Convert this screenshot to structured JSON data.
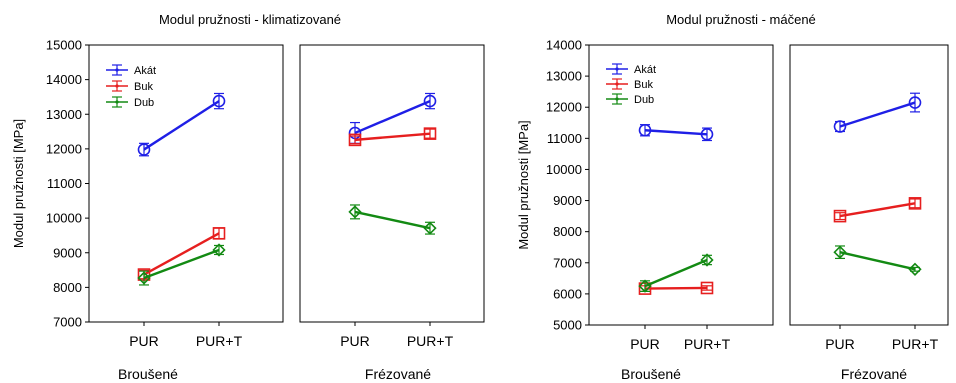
{
  "chart_data": [
    {
      "type": "line",
      "title": "Modul pružnosti - klimatizované",
      "ylabel": "Modul pružnosti [MPa]",
      "ylim": [
        7000,
        15000
      ],
      "yticks": [
        7000,
        8000,
        9000,
        10000,
        11000,
        12000,
        13000,
        14000,
        15000
      ],
      "legend_placement": "top-left",
      "panels": [
        {
          "label": "Broušené",
          "categories": [
            "PUR",
            "PUR+T"
          ],
          "series": [
            {
              "name": "Akát",
              "color": "#1f1fe6",
              "marker": "circle",
              "values": [
                11980,
                13380
              ],
              "error": [
                180,
                220
              ]
            },
            {
              "name": "Buk",
              "color": "#e61f1f",
              "marker": "square",
              "values": [
                8370,
                9560
              ],
              "error": [
                120,
                150
              ]
            },
            {
              "name": "Dub",
              "color": "#138a13",
              "marker": "diamond",
              "values": [
                8270,
                9080
              ],
              "error": [
                200,
                130
              ]
            }
          ]
        },
        {
          "label": "Frézované",
          "categories": [
            "PUR",
            "PUR+T"
          ],
          "series": [
            {
              "name": "Akát",
              "color": "#1f1fe6",
              "marker": "circle",
              "values": [
                12460,
                13380
              ],
              "error": [
                300,
                220
              ]
            },
            {
              "name": "Buk",
              "color": "#e61f1f",
              "marker": "square",
              "values": [
                12260,
                12440
              ],
              "error": [
                110,
                130
              ]
            },
            {
              "name": "Dub",
              "color": "#138a13",
              "marker": "diamond",
              "values": [
                10180,
                9710
              ],
              "error": [
                200,
                170
              ]
            }
          ]
        }
      ]
    },
    {
      "type": "line",
      "title": "Modul pružnosti - máčené",
      "ylabel": "Modul pružnosti [MPa]",
      "ylim": [
        5000,
        14000
      ],
      "yticks": [
        5000,
        6000,
        7000,
        8000,
        9000,
        10000,
        11000,
        12000,
        13000,
        14000
      ],
      "legend_placement": "top-left",
      "panels": [
        {
          "label": "Broušené",
          "categories": [
            "PUR",
            "PUR+T"
          ],
          "series": [
            {
              "name": "Akát",
              "color": "#1f1fe6",
              "marker": "circle",
              "values": [
                11260,
                11130
              ],
              "error": [
                180,
                200
              ]
            },
            {
              "name": "Buk",
              "color": "#e61f1f",
              "marker": "square",
              "values": [
                6170,
                6190
              ],
              "error": [
                90,
                70
              ]
            },
            {
              "name": "Dub",
              "color": "#138a13",
              "marker": "diamond",
              "values": [
                6250,
                7090
              ],
              "error": [
                170,
                150
              ]
            }
          ]
        },
        {
          "label": "Frézované",
          "categories": [
            "PUR",
            "PUR+T"
          ],
          "series": [
            {
              "name": "Akát",
              "color": "#1f1fe6",
              "marker": "circle",
              "values": [
                11380,
                12150
              ],
              "error": [
                160,
                300
              ]
            },
            {
              "name": "Buk",
              "color": "#e61f1f",
              "marker": "square",
              "values": [
                8500,
                8910
              ],
              "error": [
                110,
                140
              ]
            },
            {
              "name": "Dub",
              "color": "#138a13",
              "marker": "diamond",
              "values": [
                7340,
                6790
              ],
              "error": [
                200,
                60
              ]
            }
          ]
        }
      ]
    }
  ]
}
